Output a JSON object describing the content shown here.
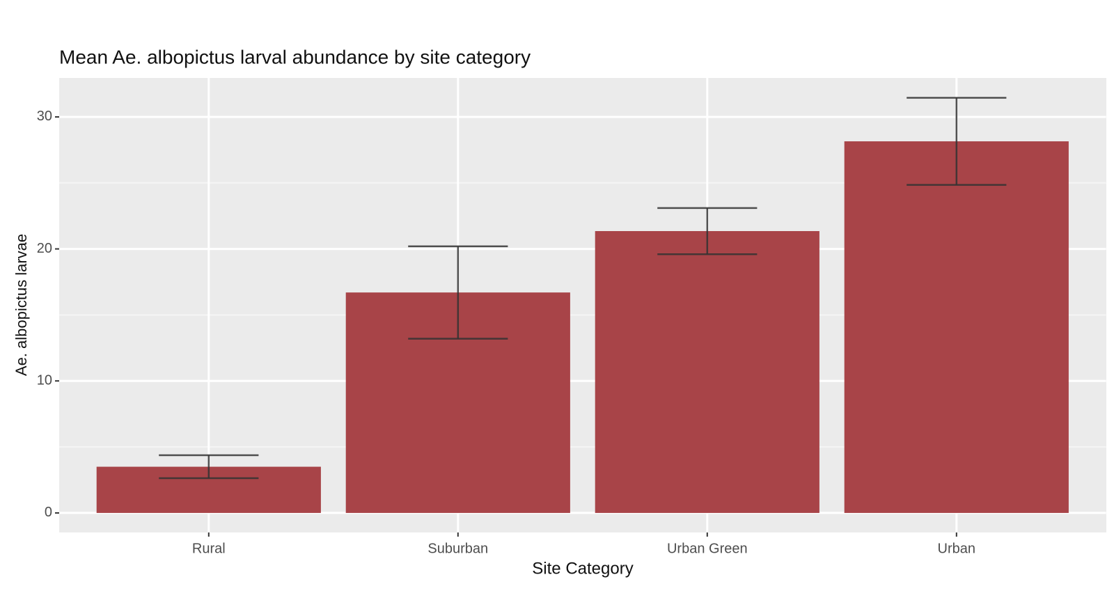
{
  "chart_data": {
    "type": "bar",
    "title": "Mean Ae. albopictus larval abundance by site category",
    "x_label": "Site Category",
    "y_label": "Ae. albopictus larvae",
    "categories": [
      "Rural",
      "Suburban",
      "Urban Green",
      "Urban"
    ],
    "values": [
      3.5,
      16.7,
      21.35,
      28.15
    ],
    "errors": [
      0.87,
      3.5,
      1.75,
      3.3
    ],
    "color": "#a84448",
    "error_color": "#333333",
    "ylim": [
      -1.48,
      32.95
    ],
    "yticks": [
      0,
      10,
      20,
      30
    ],
    "minor_grid": [
      5,
      15,
      25
    ],
    "grid": true
  }
}
